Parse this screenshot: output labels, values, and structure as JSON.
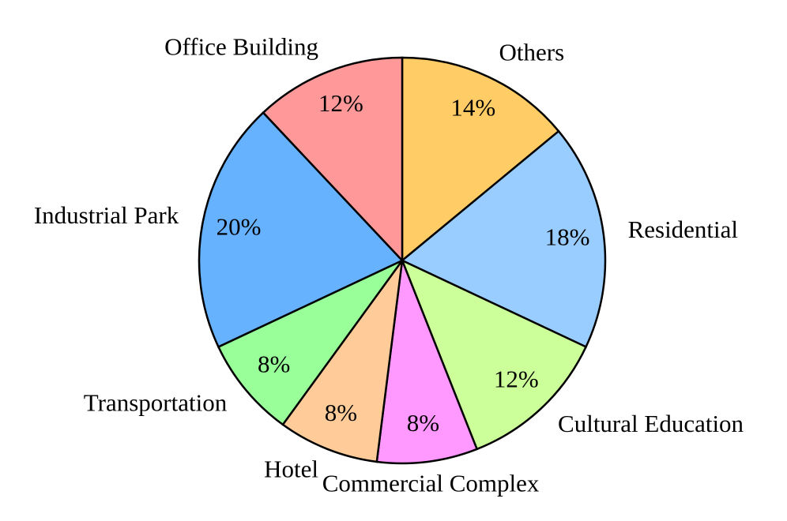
{
  "chart_data": {
    "type": "pie",
    "categories": [
      "Others",
      "Residential",
      "Cultural Education",
      "Commercial Complex",
      "Hotel",
      "Transportation",
      "Industrial Park",
      "Office Building"
    ],
    "values": [
      14,
      18,
      12,
      8,
      8,
      8,
      20,
      12
    ],
    "value_labels": [
      "14%",
      "18%",
      "12%",
      "8%",
      "8%",
      "8%",
      "20%",
      "12%"
    ],
    "colors": [
      "#ffcc66",
      "#99ccff",
      "#ccff99",
      "#ff99ff",
      "#ffcc99",
      "#99ff99",
      "#66b2ff",
      "#ff9999"
    ]
  }
}
